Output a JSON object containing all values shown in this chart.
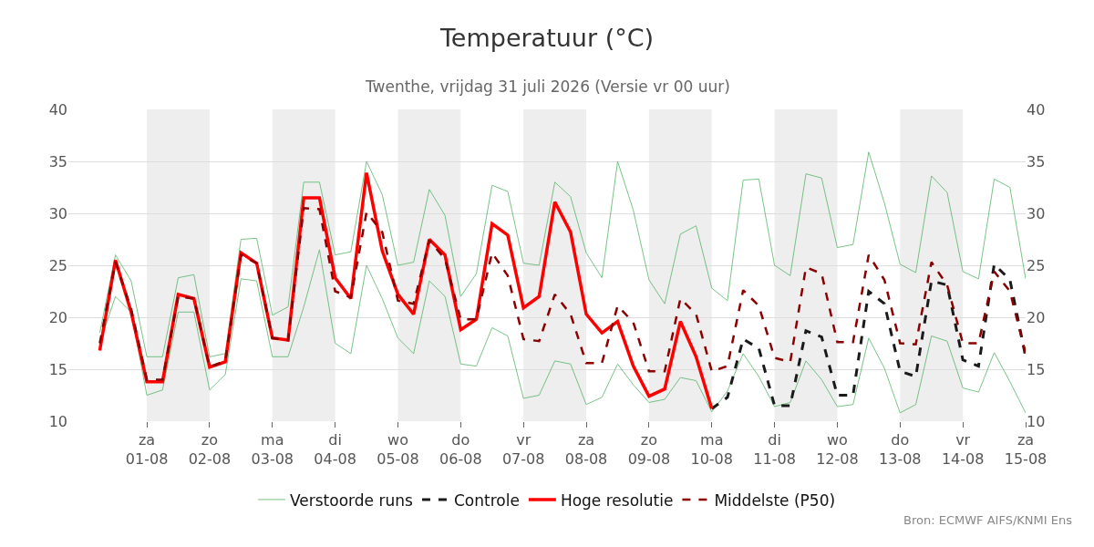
{
  "chart_data": {
    "type": "line",
    "title": "Temperatuur (°C)",
    "subtitle": "Twenthe, vrijdag 31 juli 2026 (Versie vr 00 uur)",
    "annotations": [
      "Bron: ECMWF AIFS/KNMI Ens"
    ],
    "x": [
      "2026-07-31T06:00",
      "2026-07-31T12:00",
      "2026-07-31T18:00",
      "2026-08-01T00:00",
      "2026-08-01T06:00",
      "2026-08-01T12:00",
      "2026-08-01T18:00",
      "2026-08-02T00:00",
      "2026-08-02T06:00",
      "2026-08-02T12:00",
      "2026-08-02T18:00",
      "2026-08-03T00:00",
      "2026-08-03T06:00",
      "2026-08-03T12:00",
      "2026-08-03T18:00",
      "2026-08-04T00:00",
      "2026-08-04T06:00",
      "2026-08-04T12:00",
      "2026-08-04T18:00",
      "2026-08-05T00:00",
      "2026-08-05T06:00",
      "2026-08-05T12:00",
      "2026-08-05T18:00",
      "2026-08-06T00:00",
      "2026-08-06T06:00",
      "2026-08-06T12:00",
      "2026-08-06T18:00",
      "2026-08-07T00:00",
      "2026-08-07T06:00",
      "2026-08-07T12:00",
      "2026-08-07T18:00",
      "2026-08-08T00:00",
      "2026-08-08T06:00",
      "2026-08-08T12:00",
      "2026-08-08T18:00",
      "2026-08-09T00:00",
      "2026-08-09T06:00",
      "2026-08-09T12:00",
      "2026-08-09T18:00",
      "2026-08-10T00:00",
      "2026-08-10T06:00",
      "2026-08-10T12:00",
      "2026-08-10T18:00",
      "2026-08-11T00:00",
      "2026-08-11T06:00",
      "2026-08-11T12:00",
      "2026-08-11T18:00",
      "2026-08-12T00:00",
      "2026-08-12T06:00",
      "2026-08-12T12:00",
      "2026-08-12T18:00",
      "2026-08-13T00:00",
      "2026-08-13T06:00",
      "2026-08-13T12:00",
      "2026-08-13T18:00",
      "2026-08-14T00:00",
      "2026-08-14T06:00",
      "2026-08-14T12:00",
      "2026-08-14T18:00",
      "2026-08-15T00:00"
    ],
    "series": [
      {
        "name": "Verstoorde runs",
        "color": "#4caf5f",
        "line_style": "solid",
        "values": [
          18.5,
          26,
          23.5,
          16.2,
          16.2,
          23.8,
          24.1,
          16.2,
          16.5,
          27.5,
          27.6,
          20.2,
          21,
          33,
          33,
          26,
          26.3,
          35,
          31.8,
          25,
          25.3,
          32.3,
          29.8,
          22,
          24.2,
          32.7,
          32.1,
          25.2,
          25,
          33,
          31.6,
          26.2,
          23.8,
          35,
          30.3,
          23.6,
          21.3,
          28,
          28.8,
          22.8,
          21.6,
          33.2,
          33.3,
          25,
          24,
          33.8,
          33.4,
          26.7,
          27,
          35.9,
          31,
          25.1,
          24.3,
          33.6,
          32,
          24.4,
          23.7,
          33.3,
          32.5,
          23.7
        ]
      },
      {
        "color": "#4caf5f",
        "line_style": "solid",
        "values": [
          17.5,
          22,
          20.5,
          12.5,
          13,
          20.5,
          20.5,
          13,
          14.5,
          23.7,
          23.5,
          16.2,
          16.2,
          21,
          26.5,
          17.5,
          16.5,
          25,
          21.8,
          18,
          16.5,
          23.5,
          22,
          15.5,
          15.3,
          19,
          18.2,
          12.2,
          12.5,
          15.8,
          15.5,
          11.6,
          12.3,
          15.5,
          13.5,
          11.8,
          12.1,
          14.2,
          13.9,
          10.9,
          12.9,
          16.5,
          14.3,
          11.4,
          11.8,
          15.8,
          14,
          11.4,
          11.6,
          18,
          15.1,
          10.8,
          11.6,
          18.2,
          17.7,
          13.2,
          12.8,
          16.6,
          13.8,
          10.8
        ]
      },
      {
        "name": "Controle",
        "color": "#1a1a1a",
        "line_style": "dashed",
        "values": [
          null,
          null,
          null,
          null,
          null,
          null,
          null,
          null,
          null,
          null,
          null,
          null,
          null,
          null,
          null,
          null,
          null,
          null,
          null,
          null,
          null,
          null,
          null,
          null,
          null,
          null,
          null,
          null,
          null,
          null,
          null,
          null,
          null,
          null,
          null,
          null,
          null,
          null,
          null,
          11.2,
          12.3,
          17.9,
          17.0,
          11.5,
          11.5,
          18.7,
          18.1,
          12.5,
          12.5,
          22.5,
          21.3,
          14.8,
          14.3,
          23.5,
          23.1,
          15.9,
          15.3,
          25.1,
          23.6,
          16.2
        ]
      },
      {
        "name": "Hoge resolutie",
        "color": "#ff0000",
        "line_style": "solid",
        "values": [
          16.8,
          25.5,
          20.5,
          13.8,
          13.8,
          22.2,
          21.8,
          15.2,
          15.7,
          26.2,
          25.2,
          18,
          17.8,
          31.5,
          31.5,
          23.8,
          21.8,
          33.9,
          26.4,
          22.2,
          20.3,
          27.5,
          26,
          18.8,
          19.8,
          29,
          27.9,
          20.9,
          22,
          31.1,
          28.2,
          20.3,
          18.5,
          19.6,
          15.3,
          12.4,
          13.1,
          19.6,
          16.2,
          11.2,
          null,
          null,
          null,
          null,
          null,
          null,
          null,
          null,
          null,
          null,
          null,
          null,
          null,
          null,
          null,
          null,
          null,
          null,
          null,
          null
        ]
      },
      {
        "name": "Middelste (P50)",
        "color": "#8b0000",
        "line_style": "dashed",
        "values": [
          17.5,
          25.3,
          20.8,
          14,
          14,
          22,
          21.8,
          15.2,
          15.8,
          26,
          25.2,
          18,
          17.8,
          30.5,
          30.4,
          22.5,
          21.9,
          30.1,
          28.2,
          21.6,
          21.3,
          27.4,
          25.6,
          19.8,
          19.8,
          26.2,
          24,
          17.9,
          17.7,
          22.2,
          20.3,
          15.6,
          15.6,
          21.1,
          19.5,
          14.8,
          14.8,
          21.8,
          20.3,
          14.8,
          15.3,
          22.6,
          21.1,
          16.1,
          15.7,
          24.8,
          24.2,
          17.6,
          17.6,
          26,
          23.6,
          17.5,
          17.4,
          25.3,
          23.1,
          17.5,
          17.5,
          24.4,
          22.5,
          16.5
        ]
      }
    ],
    "xlim": [
      "2026-07-30T18:00",
      "2026-08-15T00:00"
    ],
    "xticks": [
      {
        "value": "2026-08-01",
        "label": "za\n01-08"
      },
      {
        "value": "2026-08-02",
        "label": "zo\n02-08"
      },
      {
        "value": "2026-08-03",
        "label": "ma\n03-08"
      },
      {
        "value": "2026-08-04",
        "label": "di\n04-08"
      },
      {
        "value": "2026-08-05",
        "label": "wo\n05-08"
      },
      {
        "value": "2026-08-06",
        "label": "do\n06-08"
      },
      {
        "value": "2026-08-07",
        "label": "vr\n07-08"
      },
      {
        "value": "2026-08-08",
        "label": "za\n08-08"
      },
      {
        "value": "2026-08-09",
        "label": "zo\n09-08"
      },
      {
        "value": "2026-08-10",
        "label": "ma\n10-08"
      },
      {
        "value": "2026-08-11",
        "label": "di\n11-08"
      },
      {
        "value": "2026-08-12",
        "label": "wo\n12-08"
      },
      {
        "value": "2026-08-13",
        "label": "do\n13-08"
      },
      {
        "value": "2026-08-14",
        "label": "vr\n14-08"
      },
      {
        "value": "2026-08-15",
        "label": "za\n15-08"
      }
    ],
    "ylim": [
      10,
      40
    ],
    "yticks": [
      10,
      15,
      20,
      25,
      30,
      35,
      40
    ],
    "y2lim": [
      10,
      40
    ],
    "y2ticks": [
      10,
      15,
      20,
      25,
      30,
      35,
      40
    ],
    "bands": [
      {
        "axis": "x",
        "from": "2026-08-01",
        "to": "2026-08-02",
        "color": "#eeeeee"
      },
      {
        "axis": "x",
        "from": "2026-08-03",
        "to": "2026-08-04",
        "color": "#eeeeee"
      },
      {
        "axis": "x",
        "from": "2026-08-05",
        "to": "2026-08-06",
        "color": "#eeeeee"
      },
      {
        "axis": "x",
        "from": "2026-08-07",
        "to": "2026-08-08",
        "color": "#eeeeee"
      },
      {
        "axis": "x",
        "from": "2026-08-09",
        "to": "2026-08-10",
        "color": "#eeeeee"
      },
      {
        "axis": "x",
        "from": "2026-08-11",
        "to": "2026-08-12",
        "color": "#eeeeee"
      },
      {
        "axis": "x",
        "from": "2026-08-13",
        "to": "2026-08-14",
        "color": "#eeeeee"
      }
    ],
    "grid": "y",
    "legend": "bottom",
    "marker": "none"
  }
}
